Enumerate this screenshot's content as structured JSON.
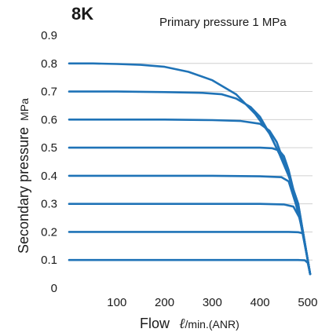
{
  "chart_data": {
    "type": "line",
    "title": "8K",
    "subtitle": "Primary pressure 1 MPa",
    "xlabel": "Flow",
    "xunit_symbol": "ℓ",
    "xunit": "/min.(ANR)",
    "ylabel": "Secondary pressure",
    "yunit": "MPa",
    "xlim": [
      0,
      510
    ],
    "ylim": [
      0,
      0.9
    ],
    "x_ticks": [
      "100",
      "200",
      "300",
      "400",
      "500"
    ],
    "y_ticks": [
      "0",
      "0.1",
      "0.2",
      "0.3",
      "0.4",
      "0.5",
      "0.6",
      "0.7",
      "0.8",
      "0.9"
    ],
    "grid": "horizontal",
    "series_color": "#1f73b7",
    "series": [
      {
        "x": [
          0,
          100,
          200,
          300,
          400,
          480,
          494,
          500,
          505
        ],
        "y": [
          0.1,
          0.1,
          0.1,
          0.1,
          0.1,
          0.1,
          0.099,
          0.09,
          0.05
        ]
      },
      {
        "x": [
          0,
          100,
          200,
          300,
          400,
          460,
          480,
          490,
          500,
          505
        ],
        "y": [
          0.2,
          0.2,
          0.2,
          0.2,
          0.2,
          0.2,
          0.199,
          0.195,
          0.1,
          0.05
        ]
      },
      {
        "x": [
          0,
          100,
          200,
          300,
          400,
          450,
          470,
          483,
          500,
          505
        ],
        "y": [
          0.3,
          0.3,
          0.3,
          0.3,
          0.3,
          0.298,
          0.29,
          0.25,
          0.1,
          0.05
        ]
      },
      {
        "x": [
          0,
          100,
          200,
          300,
          400,
          445,
          460,
          475,
          490,
          505
        ],
        "y": [
          0.4,
          0.4,
          0.4,
          0.4,
          0.398,
          0.395,
          0.38,
          0.3,
          0.2,
          0.05
        ]
      },
      {
        "x": [
          0,
          100,
          200,
          300,
          400,
          425,
          440,
          450,
          460,
          470,
          490,
          505
        ],
        "y": [
          0.5,
          0.5,
          0.5,
          0.5,
          0.5,
          0.498,
          0.49,
          0.47,
          0.42,
          0.35,
          0.2,
          0.05
        ]
      },
      {
        "x": [
          0,
          100,
          200,
          300,
          360,
          400,
          420,
          435,
          450,
          465,
          480,
          500,
          505
        ],
        "y": [
          0.6,
          0.6,
          0.6,
          0.598,
          0.595,
          0.585,
          0.56,
          0.52,
          0.45,
          0.38,
          0.28,
          0.1,
          0.05
        ]
      },
      {
        "x": [
          0,
          100,
          200,
          280,
          320,
          350,
          380,
          400,
          420,
          440,
          460,
          480,
          505
        ],
        "y": [
          0.7,
          0.7,
          0.698,
          0.695,
          0.69,
          0.675,
          0.645,
          0.61,
          0.55,
          0.48,
          0.4,
          0.3,
          0.05
        ]
      },
      {
        "x": [
          0,
          50,
          100,
          150,
          200,
          250,
          300,
          350,
          390,
          420,
          440,
          460,
          480,
          500,
          505
        ],
        "y": [
          0.8,
          0.8,
          0.798,
          0.795,
          0.788,
          0.77,
          0.74,
          0.69,
          0.62,
          0.55,
          0.48,
          0.4,
          0.3,
          0.1,
          0.05
        ]
      }
    ]
  }
}
